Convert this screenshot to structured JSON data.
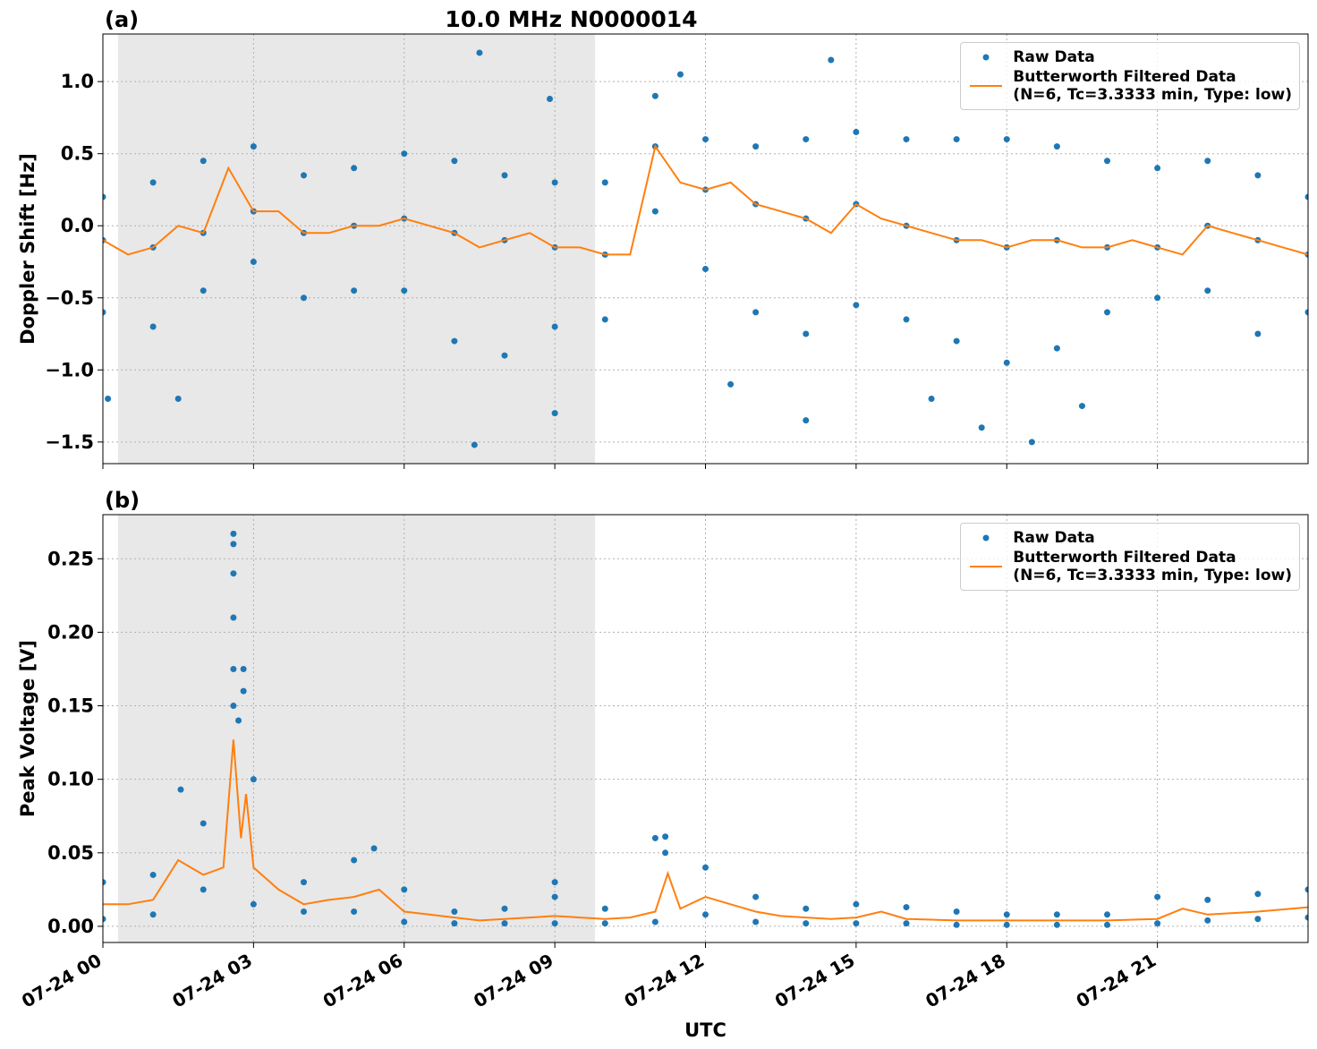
{
  "chart_data": [
    {
      "type": "scatter_line",
      "title": "10.0 MHz N0000014",
      "panel_label": "(a)",
      "ylabel": "Doppler Shift [Hz]",
      "xlim": [
        0,
        24
      ],
      "xticks": [
        0,
        3,
        6,
        9,
        12,
        15,
        18,
        21
      ],
      "xtick_labels": false,
      "ylim": [
        -1.65,
        1.33
      ],
      "yticks": [
        {
          "value": -1.5,
          "label": "−1.5"
        },
        {
          "value": -1,
          "label": "−1.0"
        },
        {
          "value": -0.5,
          "label": "−0.5"
        },
        {
          "value": 0,
          "label": "0.0"
        },
        0.5,
        {
          "value": 1,
          "label": "1.0"
        }
      ],
      "grid": true,
      "legend": "upper right",
      "shaded_span": [
        0.3,
        9.8
      ],
      "shade_color": "#e8e8e8",
      "series": [
        {
          "name": "Raw Data",
          "color": "#1f77b4",
          "kind": "scatter",
          "x": [
            0,
            1,
            2,
            3,
            4,
            5,
            6,
            7,
            8,
            9,
            10,
            11,
            12,
            13,
            14,
            15,
            16,
            17,
            18,
            19,
            20,
            21,
            22,
            23,
            24,
            0,
            1,
            2,
            3,
            4,
            5,
            6,
            7,
            8,
            9,
            10,
            11,
            12,
            13,
            14,
            15,
            16,
            17,
            18,
            19,
            20,
            21,
            22,
            23,
            24,
            0,
            1,
            2,
            3,
            4,
            5,
            6,
            7,
            8,
            9,
            10,
            11,
            12,
            13,
            14,
            15,
            16,
            17,
            18,
            19,
            20,
            21,
            22,
            23,
            24,
            1.5,
            7.4,
            7.5,
            9.0,
            11.5,
            14.5,
            14.0,
            18.5,
            17.5,
            16.5,
            0.1,
            19.5,
            8.9,
            12.5
          ],
          "values": [
            0.2,
            0.3,
            0.45,
            0.55,
            0.35,
            0.4,
            0.5,
            0.45,
            0.35,
            0.3,
            0.3,
            0.9,
            0.6,
            0.55,
            0.6,
            0.65,
            0.6,
            0.6,
            0.6,
            0.55,
            0.45,
            0.4,
            0.45,
            0.35,
            0.2,
            -0.6,
            -0.7,
            -0.45,
            -0.25,
            -0.5,
            -0.45,
            -0.45,
            -0.8,
            -0.9,
            -0.7,
            -0.65,
            0.1,
            -0.3,
            -0.6,
            -0.75,
            -0.55,
            -0.65,
            -0.8,
            -0.95,
            -0.85,
            -0.6,
            -0.5,
            -0.45,
            -0.75,
            -0.6,
            -0.1,
            -0.15,
            -0.05,
            0.1,
            -0.05,
            0.0,
            0.05,
            -0.05,
            -0.1,
            -0.15,
            -0.2,
            0.55,
            0.25,
            0.15,
            0.05,
            0.15,
            0.0,
            -0.1,
            -0.15,
            -0.1,
            -0.15,
            -0.15,
            0.0,
            -0.1,
            -0.2,
            -1.2,
            -1.52,
            1.2,
            -1.3,
            1.05,
            1.15,
            -1.35,
            -1.5,
            -1.4,
            -1.2,
            -1.2,
            -1.25,
            0.88,
            -1.1
          ]
        },
        {
          "name": "Butterworth Filtered Data\n(N=6, Tc=3.3333 min, Type: low)",
          "color": "#ff7f0e",
          "kind": "line",
          "x": [
            0,
            0.5,
            1,
            1.5,
            2,
            2.5,
            3,
            3.5,
            4,
            4.5,
            5,
            5.5,
            6,
            6.5,
            7,
            7.5,
            8,
            8.5,
            9,
            9.5,
            10,
            10.5,
            11,
            11.5,
            12,
            12.5,
            13,
            13.5,
            14,
            14.5,
            15,
            15.5,
            16,
            16.5,
            17,
            17.5,
            18,
            18.5,
            19,
            19.5,
            20,
            20.5,
            21,
            21.5,
            22,
            22.5,
            23,
            23.5,
            24
          ],
          "values": [
            -0.1,
            -0.2,
            -0.15,
            0.0,
            -0.05,
            0.4,
            0.1,
            0.1,
            -0.05,
            -0.05,
            0.0,
            0.0,
            0.05,
            0.0,
            -0.05,
            -0.15,
            -0.1,
            -0.05,
            -0.15,
            -0.15,
            -0.2,
            -0.2,
            0.55,
            0.3,
            0.25,
            0.3,
            0.15,
            0.1,
            0.05,
            -0.05,
            0.15,
            0.05,
            0.0,
            -0.05,
            -0.1,
            -0.1,
            -0.15,
            -0.1,
            -0.1,
            -0.15,
            -0.15,
            -0.1,
            -0.15,
            -0.2,
            0.0,
            -0.05,
            -0.1,
            -0.15,
            -0.2
          ]
        }
      ]
    },
    {
      "type": "scatter_line",
      "panel_label": "(b)",
      "ylabel": "Peak Voltage [V]",
      "xlabel": "UTC",
      "xlim": [
        0,
        24
      ],
      "xticks": [
        {
          "value": 0,
          "label": "07-24 00"
        },
        {
          "value": 3,
          "label": "07-24 03"
        },
        {
          "value": 6,
          "label": "07-24 06"
        },
        {
          "value": 9,
          "label": "07-24 09"
        },
        {
          "value": 12,
          "label": "07-24 12"
        },
        {
          "value": 15,
          "label": "07-24 15"
        },
        {
          "value": 18,
          "label": "07-24 18"
        },
        {
          "value": 21,
          "label": "07-24 21"
        }
      ],
      "xtick_labels": true,
      "ylim": [
        -0.011,
        0.28
      ],
      "yticks": [
        {
          "value": 0,
          "label": "0.00"
        },
        0.05,
        {
          "value": 0.1,
          "label": "0.10"
        },
        0.15,
        {
          "value": 0.2,
          "label": "0.20"
        },
        0.25
      ],
      "grid": true,
      "legend": "upper right",
      "shaded_span": [
        0.3,
        9.8
      ],
      "shade_color": "#e8e8e8",
      "series": [
        {
          "name": "Raw Data",
          "color": "#1f77b4",
          "kind": "scatter",
          "x": [
            0,
            1,
            2,
            3,
            4,
            5,
            6,
            7,
            8,
            9,
            10,
            11,
            12,
            13,
            14,
            15,
            16,
            17,
            18,
            19,
            20,
            21,
            22,
            23,
            24,
            0,
            1,
            2,
            3,
            4,
            5,
            6,
            7,
            8,
            9,
            10,
            11,
            12,
            13,
            14,
            15,
            16,
            17,
            18,
            19,
            20,
            21,
            22,
            23,
            24,
            2.6,
            2.6,
            2.6,
            2.6,
            2.6,
            2.8,
            2.8,
            2.7,
            1.55,
            11.2,
            9.0,
            5.4,
            11.2,
            2.6
          ],
          "values": [
            0.03,
            0.035,
            0.07,
            0.1,
            0.03,
            0.045,
            0.025,
            0.01,
            0.012,
            0.02,
            0.012,
            0.06,
            0.04,
            0.02,
            0.012,
            0.015,
            0.013,
            0.01,
            0.008,
            0.008,
            0.008,
            0.02,
            0.018,
            0.022,
            0.025,
            0.005,
            0.008,
            0.025,
            0.015,
            0.01,
            0.01,
            0.003,
            0.002,
            0.002,
            0.002,
            0.002,
            0.003,
            0.008,
            0.003,
            0.002,
            0.002,
            0.002,
            0.001,
            0.001,
            0.001,
            0.001,
            0.002,
            0.004,
            0.005,
            0.006,
            0.267,
            0.26,
            0.24,
            0.21,
            0.175,
            0.175,
            0.16,
            0.14,
            0.093,
            0.061,
            0.03,
            0.053,
            0.05,
            0.15
          ]
        },
        {
          "name": "Butterworth Filtered Data\n(N=6, Tc=3.3333 min, Type: low)",
          "color": "#ff7f0e",
          "kind": "line",
          "x": [
            0,
            0.5,
            1,
            1.5,
            2,
            2.4,
            2.6,
            2.75,
            2.85,
            3,
            3.5,
            4,
            4.5,
            5,
            5.5,
            6,
            6.5,
            7,
            7.5,
            8,
            8.5,
            9,
            9.5,
            10,
            10.5,
            11,
            11.25,
            11.5,
            12,
            12.5,
            13,
            13.5,
            14,
            14.5,
            15,
            15.5,
            16,
            17,
            18,
            19,
            20,
            21,
            21.5,
            22,
            23,
            24
          ],
          "values": [
            0.015,
            0.015,
            0.018,
            0.045,
            0.035,
            0.04,
            0.127,
            0.06,
            0.09,
            0.04,
            0.025,
            0.015,
            0.018,
            0.02,
            0.025,
            0.01,
            0.008,
            0.006,
            0.004,
            0.005,
            0.006,
            0.007,
            0.006,
            0.005,
            0.006,
            0.01,
            0.036,
            0.012,
            0.02,
            0.015,
            0.01,
            0.007,
            0.006,
            0.005,
            0.006,
            0.01,
            0.005,
            0.004,
            0.004,
            0.004,
            0.004,
            0.005,
            0.012,
            0.008,
            0.01,
            0.013
          ]
        }
      ]
    }
  ]
}
